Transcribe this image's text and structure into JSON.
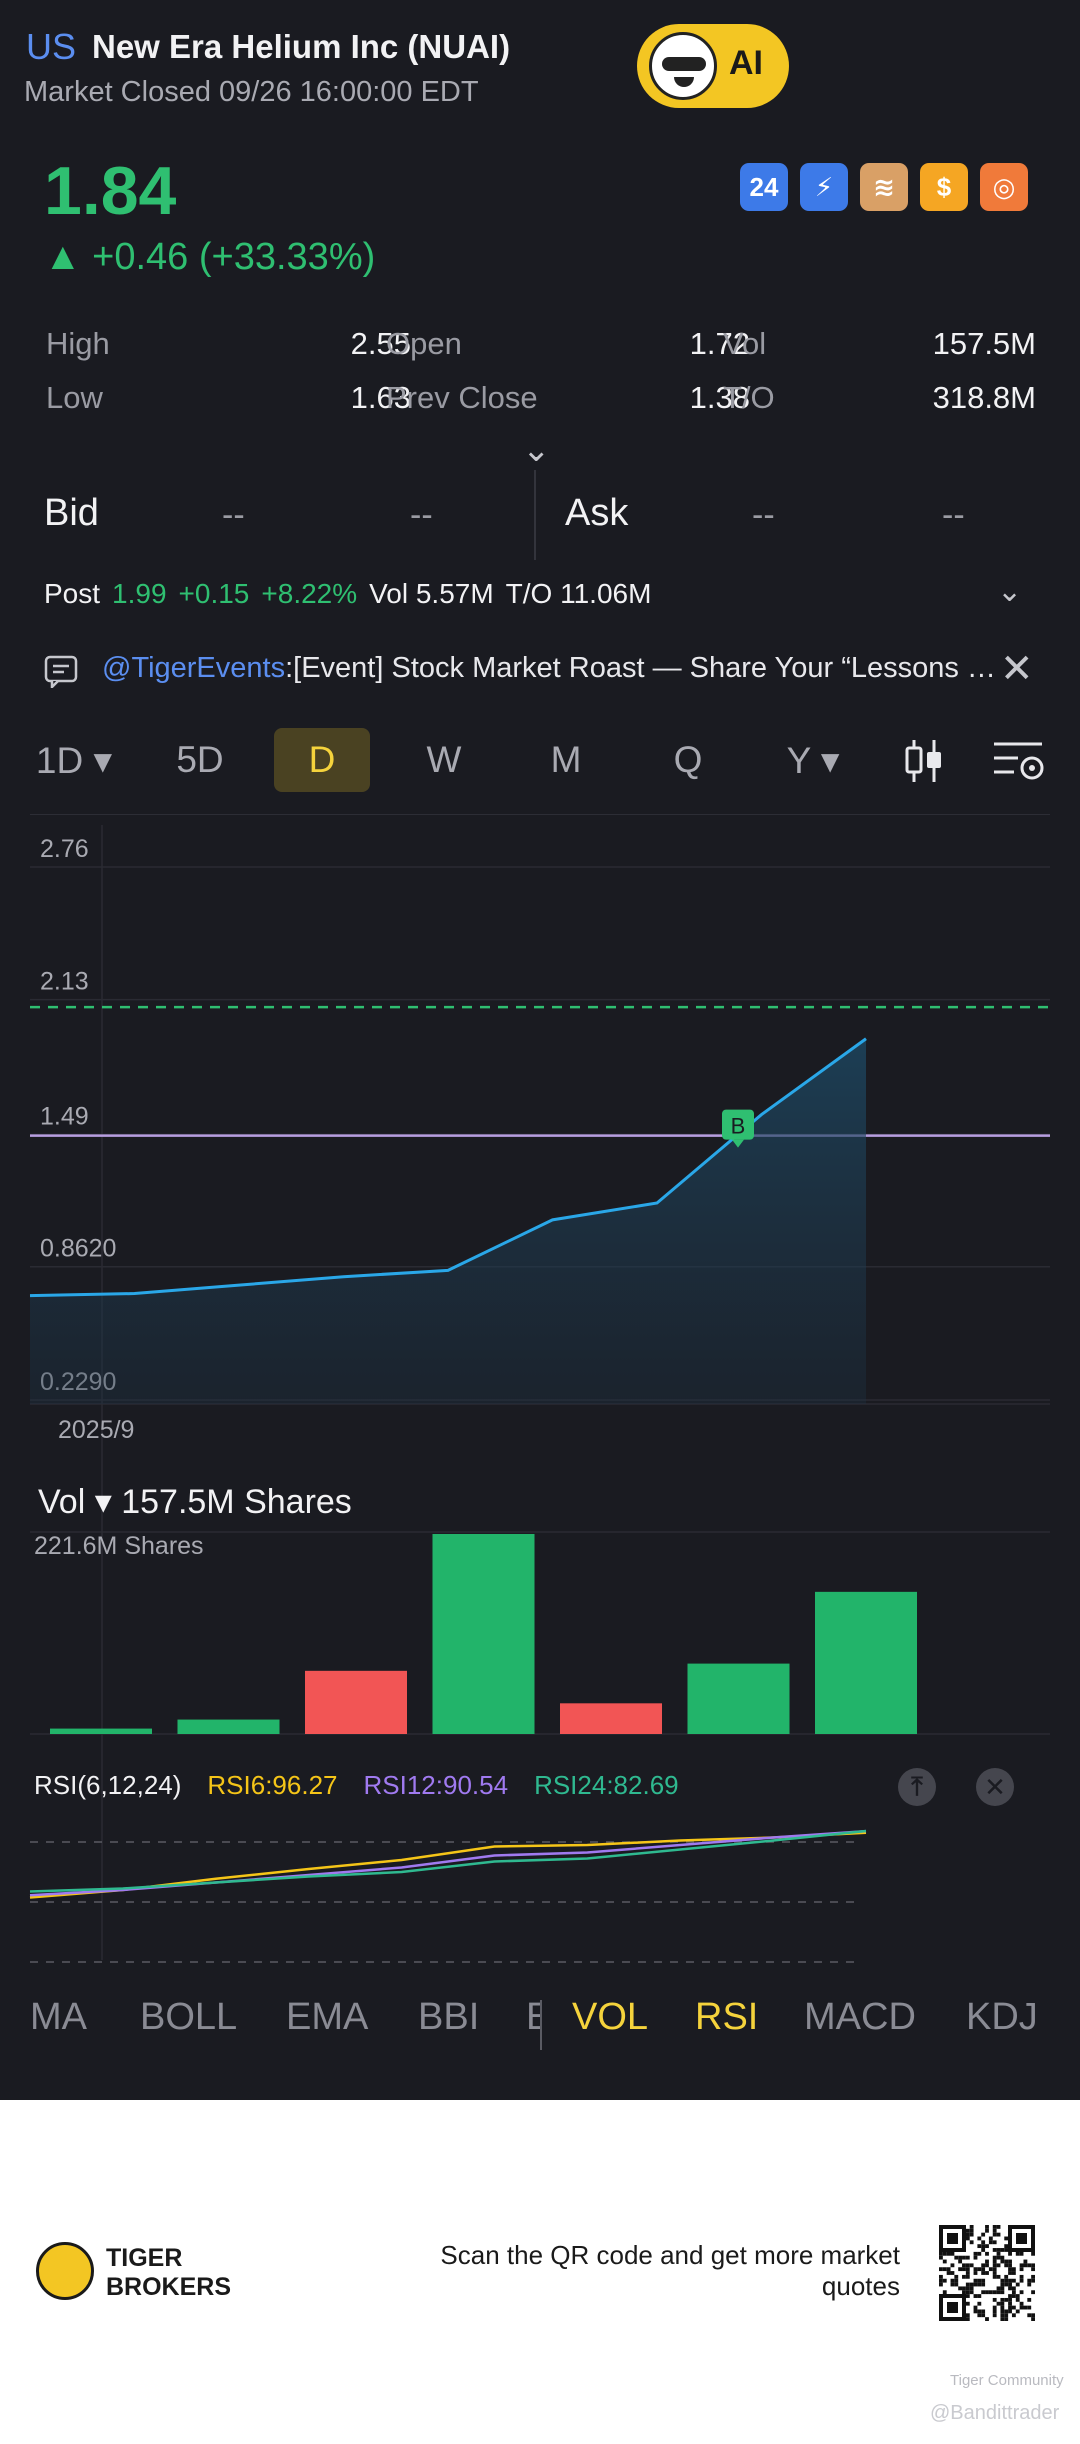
{
  "header": {
    "market_badge": "US",
    "title": "New Era Helium Inc (NUAI)",
    "status": "Market Closed 09/26 16:00:00 EDT",
    "ai_label": "AI"
  },
  "quote": {
    "price": "1.84",
    "change": "▲ +0.46 (+33.33%)",
    "quick_icons": [
      {
        "name": "24h",
        "label": "24",
        "color": "#3d7ae8"
      },
      {
        "name": "lightning-1",
        "label": "⚡",
        "color": "#3d7ae8"
      },
      {
        "name": "layers",
        "label": "≋",
        "color": "#d9a066"
      },
      {
        "name": "dollar",
        "label": "$",
        "color": "#f5a623"
      },
      {
        "name": "options",
        "label": "◎",
        "color": "#f07a3a"
      }
    ]
  },
  "stats": {
    "high_label": "High",
    "high_value": "2.55",
    "open_label": "Open",
    "open_value": "1.72",
    "vol_label": "Vol",
    "vol_value": "157.5M",
    "low_label": "Low",
    "low_value": "1.63",
    "prev_close_label": "Prev Close",
    "prev_close_value": "1.38",
    "to_label": "T/O",
    "to_value": "318.8M"
  },
  "bidask": {
    "bid_label": "Bid",
    "bid_price": "--",
    "bid_size": "--",
    "ask_label": "Ask",
    "ask_price": "--",
    "ask_size": "--"
  },
  "post": {
    "label": "Post",
    "price": "1.99",
    "change": "+0.15",
    "change_pct": "+8.22%",
    "vol": "Vol 5.57M",
    "to": "T/O 11.06M"
  },
  "event": {
    "handle": "@TigerEvents",
    "text": ":[Event] Stock Market Roast — Share Your “Lessons Le..."
  },
  "periods": [
    {
      "label": "1D ▾",
      "active": false
    },
    {
      "label": "5D",
      "active": false
    },
    {
      "label": "D",
      "active": true
    },
    {
      "label": "W",
      "active": false
    },
    {
      "label": "M",
      "active": false
    },
    {
      "label": "Q",
      "active": false
    },
    {
      "label": "Y ▾",
      "active": false
    }
  ],
  "chart_data": [
    {
      "type": "area",
      "title": "",
      "y_ticks": [
        "2.76",
        "2.13",
        "1.49",
        "0.8620",
        "0.2290"
      ],
      "x_tick": "2025/9",
      "ylim": [
        0.229,
        2.76
      ],
      "series": [
        {
          "values": [
            0.62,
            0.63,
            0.67,
            0.71,
            0.74,
            0.98,
            1.06,
            1.48,
            1.84
          ]
        }
      ],
      "reference_lines": {
        "dashed_green": 1.99,
        "purple": 1.38
      },
      "marker": "B"
    },
    {
      "type": "bar",
      "title": "Vol ▾ 157.5M Shares",
      "max_label": "221.6M Shares",
      "ylim": [
        0,
        221.6
      ],
      "values": [
        6,
        16,
        70,
        221.6,
        34,
        78,
        157.5
      ],
      "colors": [
        "green",
        "green",
        "red",
        "green",
        "red",
        "green",
        "green"
      ]
    },
    {
      "type": "line",
      "title": "RSI(6,12,24)",
      "series": [
        {
          "name": "RSI6:96.27",
          "color": "#f5c518",
          "values": [
            10,
            20,
            35,
            48,
            60,
            78,
            80,
            86,
            90,
            96.27
          ]
        },
        {
          "name": "RSI12:90.54",
          "color": "#a07af0",
          "values": [
            5,
            12,
            22,
            32,
            42,
            58,
            62,
            72,
            82,
            90.54
          ]
        },
        {
          "name": "RSI24:82.69",
          "color": "#2fb990",
          "values": [
            2,
            6,
            14,
            22,
            28,
            42,
            46,
            58,
            70,
            82.69
          ]
        }
      ]
    }
  ],
  "indicators": [
    {
      "label": "MA",
      "active": false
    },
    {
      "label": "BOLL",
      "active": false
    },
    {
      "label": "EMA",
      "active": false
    },
    {
      "label": "BBI",
      "active": false
    },
    {
      "label": "E",
      "active": false
    },
    {
      "label": "VOL",
      "active": true
    },
    {
      "label": "RSI",
      "active": true
    },
    {
      "label": "MACD",
      "active": false
    },
    {
      "label": "KDJ",
      "active": false
    }
  ],
  "footer": {
    "brand_line1": "TIGER",
    "brand_line2": "BROKERS",
    "scan_text": "Scan the QR code and get more market quotes",
    "watermark_community": "Tiger Community",
    "watermark_user": "@Bandittrader"
  }
}
